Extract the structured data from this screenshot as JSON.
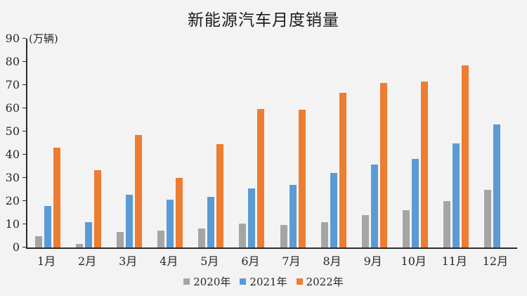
{
  "chart": {
    "title": "新能源汽车月度销量",
    "y_axis_unit_label": "(万辆)",
    "background_color": "#f3f3f3",
    "axis_color": "#2b2b2b",
    "text_color": "#262626"
  },
  "chart_data": {
    "type": "bar",
    "title": "新能源汽车月度销量",
    "xlabel": "",
    "ylabel": "(万辆)",
    "categories": [
      "1月",
      "2月",
      "3月",
      "4月",
      "5月",
      "6月",
      "7月",
      "8月",
      "9月",
      "10月",
      "11月",
      "12月"
    ],
    "series": [
      {
        "name": "2020年",
        "color": "#a5a5a5",
        "values": [
          5.0,
          1.5,
          6.6,
          7.2,
          8.2,
          10.2,
          9.8,
          10.9,
          13.8,
          16.0,
          20.0,
          24.8
        ]
      },
      {
        "name": "2021年",
        "color": "#5b9bd5",
        "values": [
          17.9,
          11.0,
          22.6,
          20.6,
          21.7,
          25.6,
          27.1,
          32.1,
          35.7,
          38.3,
          45.0,
          53.1
        ]
      },
      {
        "name": "2022年",
        "color": "#ed7d31",
        "values": [
          43.1,
          33.4,
          48.4,
          29.9,
          44.7,
          59.6,
          59.3,
          66.6,
          70.8,
          71.4,
          78.6,
          null
        ]
      }
    ],
    "ylim": [
      0,
      90
    ],
    "ytick_interval": 10,
    "yticks": [
      0,
      10,
      20,
      30,
      40,
      50,
      60,
      70,
      80,
      90
    ],
    "grid": false,
    "legend_position": "bottom",
    "legend_labels": [
      "2020年",
      "2021年",
      "2022年"
    ]
  }
}
